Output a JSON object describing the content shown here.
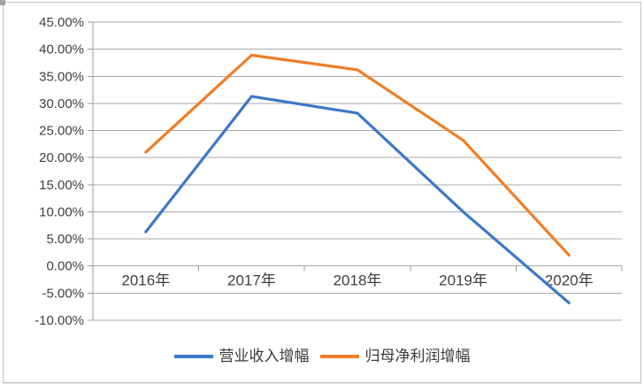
{
  "frame": {
    "background": "#ffffff",
    "border_color": "#c2c2c2",
    "gridline_color": "#a9a9a9",
    "axis_color": "#9b9b9b",
    "axis_text_color": "#3f3f3f"
  },
  "chart_data": {
    "type": "line",
    "title": "",
    "xlabel": "",
    "ylabel": "",
    "categories": [
      "2016年",
      "2017年",
      "2018年",
      "2019年",
      "2020年"
    ],
    "series": [
      {
        "name": "营业收入增幅",
        "color": "#3c78c8",
        "values": [
          6.3,
          31.3,
          28.2,
          10.0,
          -6.8
        ]
      },
      {
        "name": "归母净利润增幅",
        "color": "#f07d26",
        "values": [
          21.0,
          38.9,
          36.2,
          23.2,
          2.0
        ]
      }
    ],
    "ylim": [
      -10,
      45
    ],
    "ytick_step": 5,
    "ytick_labels": [
      "45.00%",
      "40.00%",
      "35.00%",
      "30.00%",
      "25.00%",
      "20.00%",
      "15.00%",
      "10.00%",
      "5.00%",
      "0.00%",
      "-5.00%",
      "-10.00%"
    ],
    "grid": true,
    "legend_position": "bottom"
  }
}
